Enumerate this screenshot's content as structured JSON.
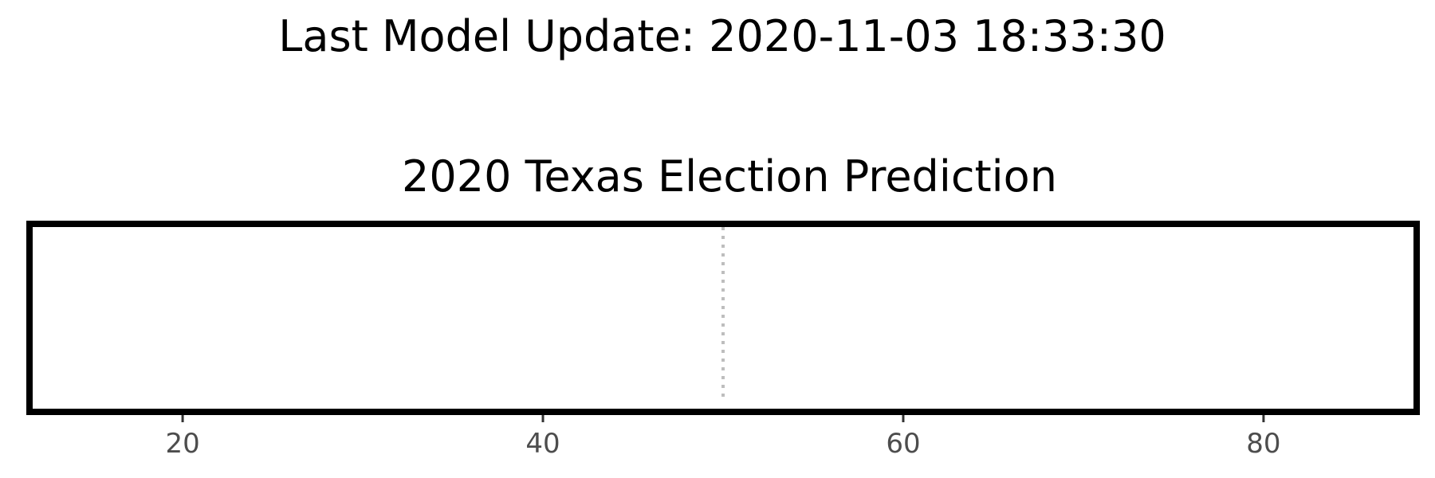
{
  "header": {
    "last_update": "Last Model Update: 2020-11-03 18:33:30"
  },
  "chart_data": {
    "type": "bar",
    "title": "2020 Texas Election Prediction",
    "xlabel": "",
    "ylabel": "",
    "xlim": [
      11.5,
      88.5
    ],
    "x_ticks": [
      20,
      40,
      60,
      80
    ],
    "x_tick_labels": [
      "20",
      "40",
      "60",
      "80"
    ],
    "reference_line": {
      "x": 50,
      "style": "dotted",
      "color": "#bebebe"
    },
    "series": [],
    "grid": false,
    "legend": "none",
    "colors": {
      "frame": "#000000",
      "tick_text": "#4d4d4d",
      "reference": "#bebebe"
    }
  }
}
